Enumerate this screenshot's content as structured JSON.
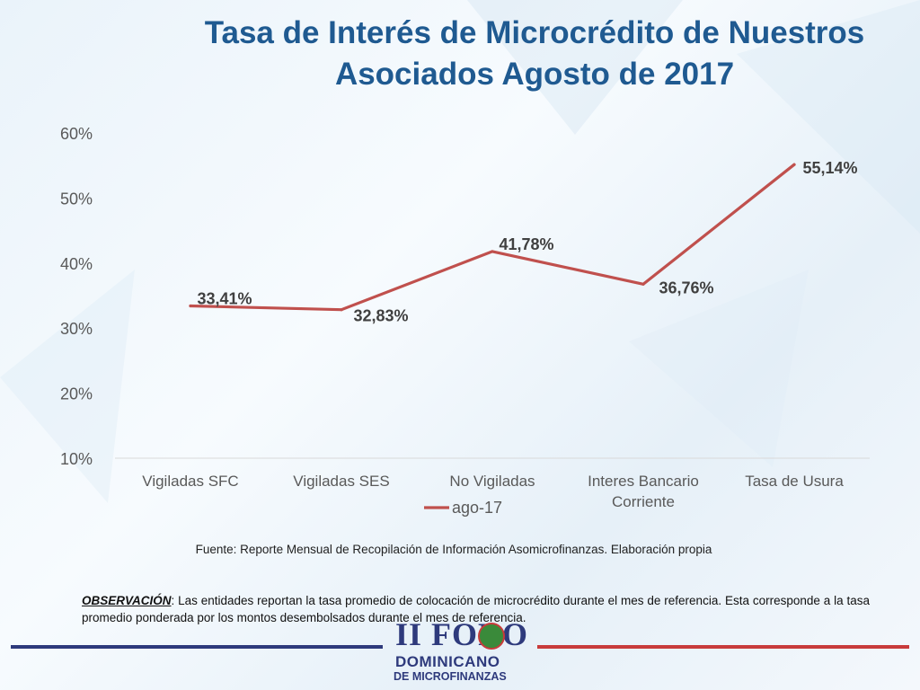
{
  "slide": {
    "title_line1": "Tasa de Interés de Microcrédito de Nuestros",
    "title_line2": "Asociados  Agosto de 2017",
    "source": "Fuente:  Reporte Mensual de Recopilación de Información Asomicrofinanzas.  Elaboración propia",
    "observation_label": "OBSERVACIÓN",
    "observation_text": ": Las entidades reportan la tasa promedio de colocación de microcrédito durante el mes de referencia. Esta corresponde a la tasa promedio ponderada por los montos desembolsados durante el mes de referencia.",
    "logo_line1": "II FORO",
    "logo_line2": "DOMINICANO",
    "logo_line3": "DE MICROFINANZAS"
  },
  "colors": {
    "title": "#1f5a91",
    "series": "#c0504d",
    "axis_text": "#595959",
    "data_label": "#404040",
    "bar_left": "#2e3a7c",
    "bar_right": "#c83b3b"
  },
  "chart_data": {
    "type": "line",
    "categories": [
      [
        "Vigiladas SFC"
      ],
      [
        "Vigiladas SES"
      ],
      [
        "No Vigiladas"
      ],
      [
        "Interes Bancario",
        "Corriente"
      ],
      [
        "Tasa de Usura"
      ]
    ],
    "series": [
      {
        "name": "ago-17",
        "values": [
          33.41,
          32.83,
          41.78,
          36.76,
          55.14
        ],
        "labels": [
          "33,41%",
          "32,83%",
          "41,78%",
          "36,76%",
          "55,14%"
        ]
      }
    ],
    "ylim": [
      10,
      60
    ],
    "yticks": [
      10,
      20,
      30,
      40,
      50,
      60
    ],
    "ytick_labels": [
      "10%",
      "20%",
      "30%",
      "40%",
      "50%",
      "60%"
    ],
    "grid": false,
    "legend": "bottom-left",
    "title": "",
    "xlabel": "",
    "ylabel": ""
  }
}
